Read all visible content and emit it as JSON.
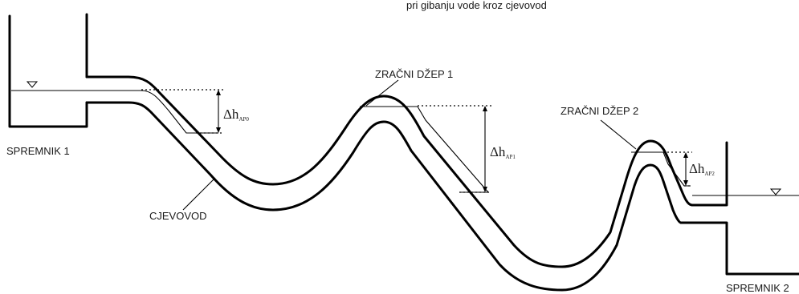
{
  "header_fragment": "pri gibanju vode kroz cjevovod",
  "tanks": {
    "tank1": "SPREMNIK 1",
    "tank2": "SPREMNIK 2"
  },
  "pipe": "CJEVOVOD",
  "air_pockets": {
    "pocket1": "ZRAČNI DŽEP 1",
    "pocket2": "ZRAČNI DŽEP 2"
  },
  "head_losses": [
    {
      "delta": "Δh",
      "sub": "AP0"
    },
    {
      "delta": "Δh",
      "sub": "AP1"
    },
    {
      "delta": "Δh",
      "sub": "AP2"
    }
  ]
}
